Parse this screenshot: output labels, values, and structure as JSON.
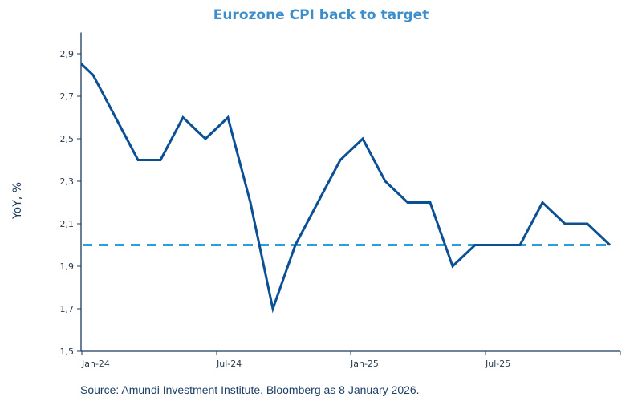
{
  "chart_data": {
    "type": "line",
    "title": "Eurozone CPI back to target",
    "xlabel": "",
    "ylabel": "YoY, %",
    "ylim": [
      1.5,
      3.0
    ],
    "yticks": [
      "1,5",
      "1,7",
      "1,9",
      "2,1",
      "2,3",
      "2,5",
      "2,7",
      "2,9"
    ],
    "ytick_values": [
      1.5,
      1.7,
      1.9,
      2.1,
      2.3,
      2.5,
      2.7,
      2.9
    ],
    "xtick_labels": [
      "Jan-24",
      "Jul-24",
      "Jan-25",
      "Jul-25"
    ],
    "x": [
      "Dec-23",
      "Jan-24",
      "Feb-24",
      "Mar-24",
      "Apr-24",
      "May-24",
      "Jun-24",
      "Jul-24",
      "Aug-24",
      "Sep-24",
      "Oct-24",
      "Nov-24",
      "Dec-24",
      "Jan-25",
      "Feb-25",
      "Mar-25",
      "Apr-25",
      "May-25",
      "Jun-25",
      "Jul-25",
      "Aug-25",
      "Sep-25",
      "Oct-25",
      "Nov-25",
      "Dec-25"
    ],
    "series": [
      {
        "values": [
          2.9,
          2.8,
          2.6,
          2.4,
          2.4,
          2.6,
          2.5,
          2.6,
          2.2,
          1.7,
          2.0,
          2.2,
          2.4,
          2.5,
          2.3,
          2.2,
          2.2,
          1.9,
          2.0,
          2.0,
          2.0,
          2.2,
          2.1,
          2.1,
          2.0
        ],
        "color": "#0b4f94",
        "style": "solid"
      }
    ],
    "reference_line": {
      "value": 2.0,
      "color": "#2a9fd8",
      "style": "dashed"
    },
    "grid": false,
    "legend": "none"
  },
  "source": "Source: Amundi Investment Institute,  Bloomberg as 8 January 2026."
}
